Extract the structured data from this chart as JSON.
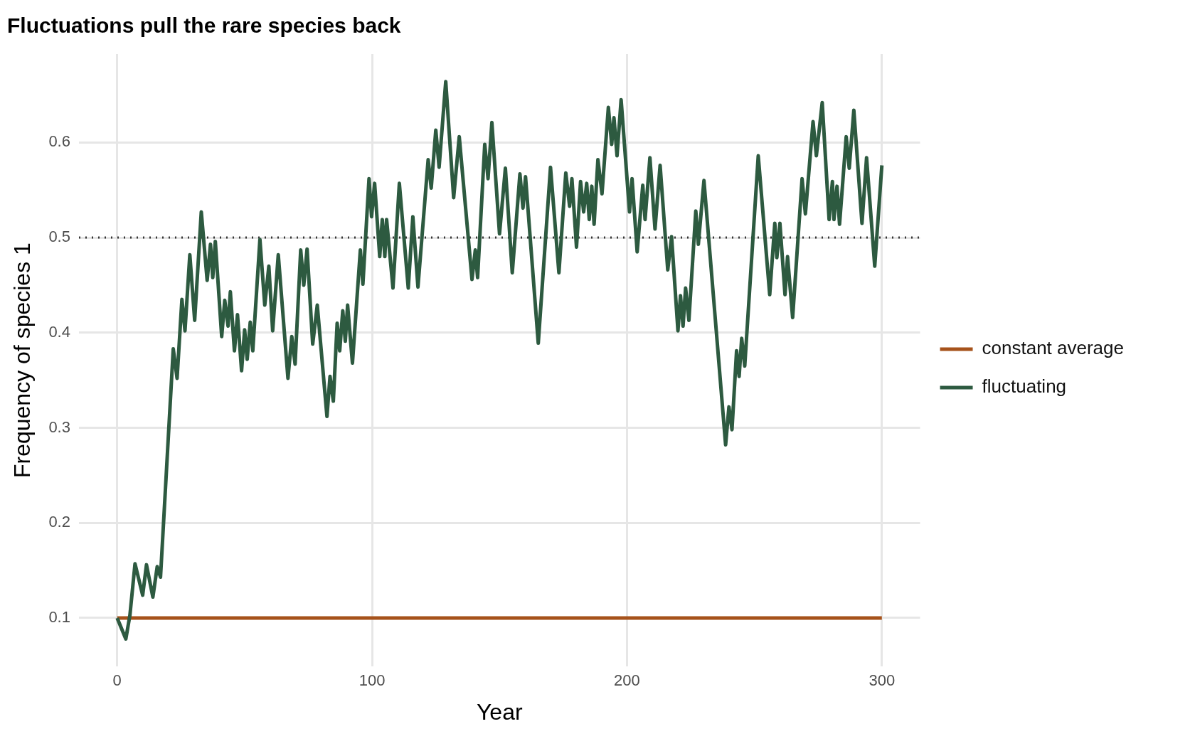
{
  "chart_data": {
    "type": "line",
    "title": "Fluctuations pull the rare species back",
    "xlabel": "Year",
    "ylabel": "Frequency of species 1",
    "xlim": [
      -15,
      315
    ],
    "xticks": [
      0,
      100,
      200,
      300
    ],
    "ylim": [
      0.049,
      0.693
    ],
    "yticks": [
      0.1,
      0.2,
      0.3,
      0.4,
      0.5,
      0.6
    ],
    "grid": true,
    "legend": "right",
    "line_style": "solid",
    "marker": "none",
    "ref_lines": [
      {
        "axis": "y",
        "value": 0.5,
        "color": "#333333",
        "line_style": "dotted"
      }
    ],
    "series": [
      {
        "name": "constant average",
        "color": "#a6521b",
        "x": [
          0,
          300
        ],
        "values": [
          0.1,
          0.1
        ]
      },
      {
        "name": "fluctuating",
        "color": "#2d5a40",
        "x": [
          0,
          3.4,
          5,
          7,
          10,
          11.5,
          14,
          15.7,
          17,
          22,
          23.5,
          25.4,
          26.6,
          28.5,
          30.4,
          33,
          35.3,
          36.6,
          37.5,
          38.5,
          41,
          42.2,
          43.5,
          44.4,
          46,
          47.2,
          48.8,
          50,
          51,
          52.2,
          53.2,
          56,
          57.9,
          59.5,
          61,
          63.2,
          67,
          68.5,
          69.8,
          72,
          73.2,
          74.5,
          76.7,
          78.5,
          82.3,
          83.5,
          84.8,
          86.3,
          87.3,
          88.5,
          89.5,
          90.4,
          92.3,
          95.4,
          96.4,
          98.8,
          99.8,
          101,
          103,
          104,
          105,
          105.7,
          108.2,
          110.7,
          114.2,
          116,
          118,
          122,
          123.2,
          125,
          126.3,
          128.9,
          132,
          134.2,
          139.2,
          140.5,
          141.4,
          144.2,
          145.5,
          147,
          150,
          152.3,
          155,
          158,
          159.2,
          160.2,
          165.2,
          170,
          173.3,
          176,
          177.5,
          178.4,
          180.2,
          181.8,
          183,
          184.2,
          185.2,
          186.2,
          187.1,
          188.6,
          190.2,
          192.7,
          194,
          194.9,
          196.1,
          197.7,
          201,
          202,
          204,
          206.2,
          207.1,
          209,
          211,
          213,
          216,
          217.5,
          220,
          221,
          222,
          223,
          224.3,
          227,
          228,
          230.2,
          238.7,
          240,
          241.2,
          243,
          244,
          245,
          246.2,
          251.5,
          256,
          258,
          258.8,
          260,
          262,
          263,
          265,
          268.7,
          270,
          273,
          274.3,
          276.6,
          279.3,
          280.6,
          281.2,
          282.4,
          283.4,
          286,
          287.2,
          289,
          292.2,
          294,
          297.2,
          300
        ],
        "values": [
          0.1,
          0.078,
          0.103,
          0.157,
          0.124,
          0.156,
          0.122,
          0.154,
          0.143,
          0.383,
          0.352,
          0.435,
          0.402,
          0.482,
          0.413,
          0.527,
          0.455,
          0.493,
          0.458,
          0.496,
          0.396,
          0.434,
          0.407,
          0.443,
          0.381,
          0.419,
          0.36,
          0.403,
          0.372,
          0.411,
          0.381,
          0.498,
          0.429,
          0.47,
          0.402,
          0.482,
          0.352,
          0.396,
          0.367,
          0.487,
          0.45,
          0.488,
          0.388,
          0.429,
          0.312,
          0.354,
          0.328,
          0.41,
          0.381,
          0.423,
          0.391,
          0.429,
          0.368,
          0.487,
          0.451,
          0.562,
          0.522,
          0.557,
          0.48,
          0.519,
          0.48,
          0.519,
          0.447,
          0.557,
          0.447,
          0.522,
          0.448,
          0.582,
          0.552,
          0.613,
          0.574,
          0.664,
          0.542,
          0.606,
          0.456,
          0.487,
          0.458,
          0.598,
          0.562,
          0.621,
          0.504,
          0.573,
          0.463,
          0.567,
          0.531,
          0.564,
          0.389,
          0.574,
          0.463,
          0.568,
          0.533,
          0.562,
          0.49,
          0.559,
          0.527,
          0.557,
          0.519,
          0.554,
          0.514,
          0.582,
          0.546,
          0.637,
          0.598,
          0.626,
          0.586,
          0.645,
          0.527,
          0.562,
          0.485,
          0.555,
          0.519,
          0.584,
          0.509,
          0.576,
          0.466,
          0.501,
          0.402,
          0.439,
          0.407,
          0.447,
          0.413,
          0.528,
          0.493,
          0.56,
          0.282,
          0.322,
          0.298,
          0.381,
          0.354,
          0.394,
          0.365,
          0.586,
          0.44,
          0.515,
          0.479,
          0.515,
          0.44,
          0.48,
          0.416,
          0.562,
          0.525,
          0.622,
          0.586,
          0.642,
          0.519,
          0.559,
          0.519,
          0.554,
          0.514,
          0.606,
          0.573,
          0.634,
          0.515,
          0.584,
          0.47,
          0.576
        ]
      }
    ]
  }
}
